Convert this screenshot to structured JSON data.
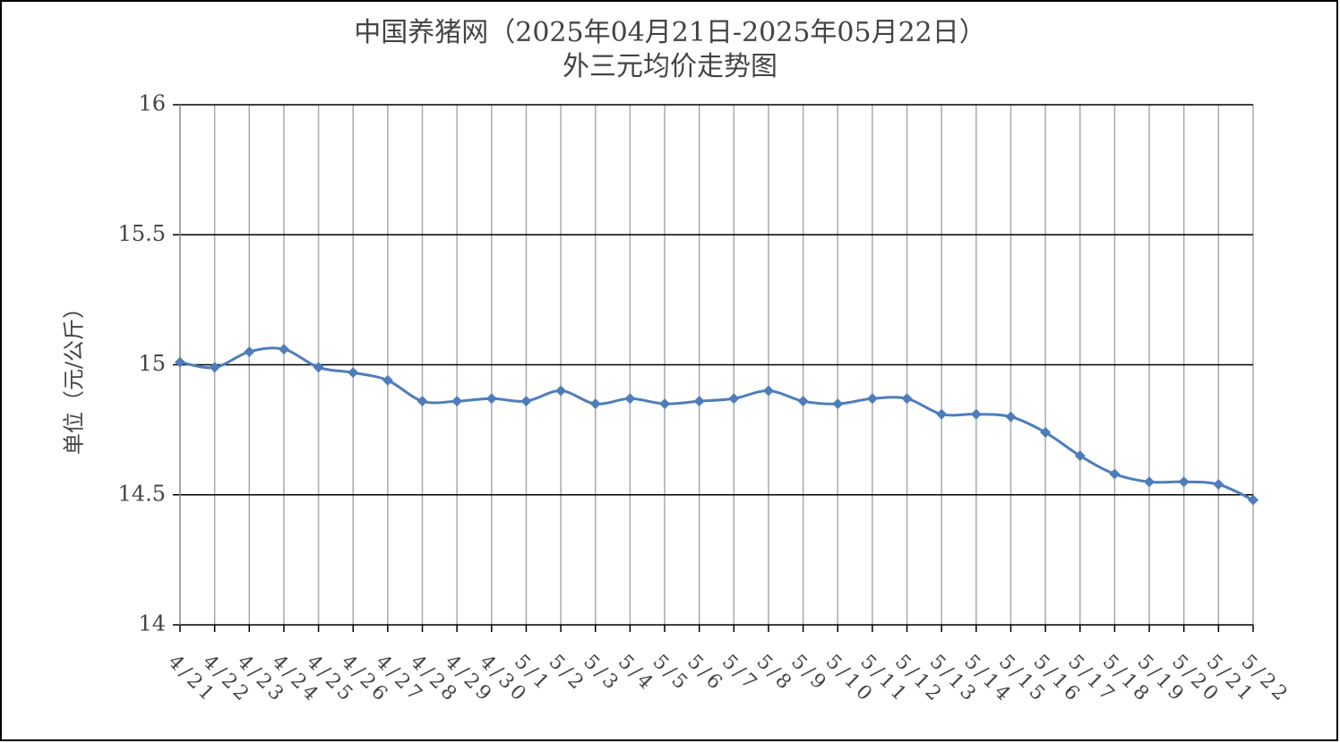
{
  "chart_data": {
    "type": "line",
    "title": "中国养猪网（2025年04月21日-2025年05月22日）",
    "subtitle": "外三元均价走势图",
    "y_label": "单位（元/公斤）",
    "categories": [
      "4/21",
      "4/22",
      "4/23",
      "4/24",
      "4/25",
      "4/26",
      "4/27",
      "4/28",
      "4/29",
      "4/30",
      "5/1",
      "5/2",
      "5/3",
      "5/4",
      "5/5",
      "5/6",
      "5/7",
      "5/8",
      "5/9",
      "5/10",
      "5/11",
      "5/12",
      "5/13",
      "5/14",
      "5/15",
      "5/16",
      "5/17",
      "5/18",
      "5/19",
      "5/20",
      "5/21",
      "5/22"
    ],
    "values": [
      15.01,
      14.99,
      15.05,
      15.06,
      14.99,
      14.97,
      14.94,
      14.86,
      14.86,
      14.87,
      14.86,
      14.9,
      14.85,
      14.87,
      14.85,
      14.86,
      14.87,
      14.9,
      14.86,
      14.85,
      14.87,
      14.87,
      14.81,
      14.81,
      14.8,
      14.74,
      14.65,
      14.58,
      14.55,
      14.55,
      14.54,
      14.48
    ],
    "color": "#4f7dbb",
    "ylim": [
      14,
      16
    ],
    "yticks": [
      14,
      14.5,
      15,
      15.5,
      16
    ],
    "grid": true
  }
}
